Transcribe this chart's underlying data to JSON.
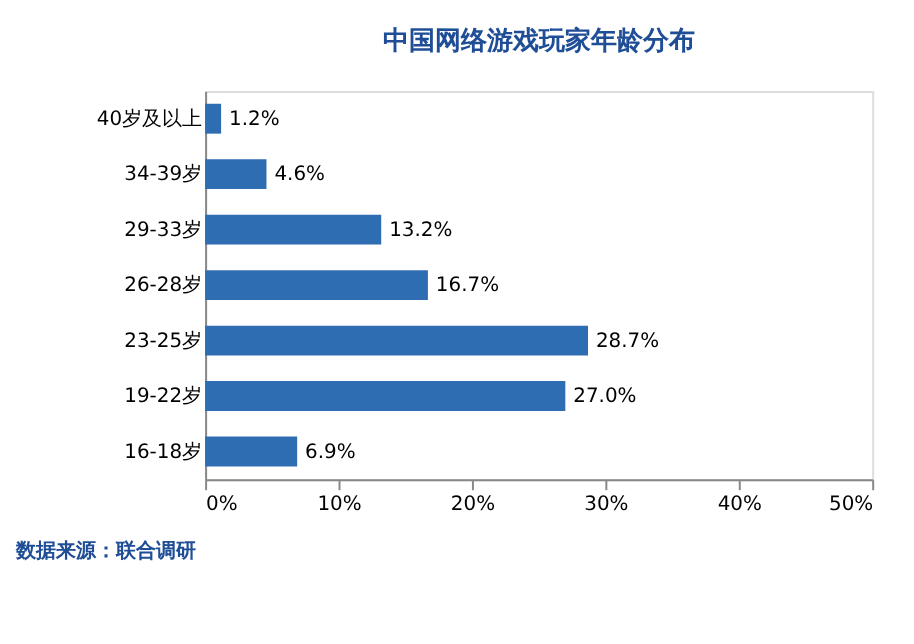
{
  "chart_data": {
    "type": "bar",
    "orientation": "horizontal",
    "title": "中国网络游戏玩家年龄分布",
    "categories": [
      "40岁及以上",
      "34-39岁",
      "29-33岁",
      "26-28岁",
      "23-25岁",
      "19-22岁",
      "16-18岁"
    ],
    "values": [
      1.2,
      4.6,
      13.2,
      16.7,
      28.7,
      27.0,
      6.9
    ],
    "value_labels": [
      "1.2%",
      "4.6%",
      "13.2%",
      "16.7%",
      "28.7%",
      "27.0%",
      "6.9%"
    ],
    "color": "#2f6db3",
    "xlim": [
      0,
      50
    ],
    "xticks": [
      {
        "value": 0,
        "label": "0%"
      },
      {
        "value": 10,
        "label": "10%"
      },
      {
        "value": 20,
        "label": "20%"
      },
      {
        "value": 30,
        "label": "30%"
      },
      {
        "value": 40,
        "label": "40%"
      },
      {
        "value": 50,
        "label": "50%"
      }
    ],
    "grid": false,
    "annotations": [
      "数据来源：联合调研"
    ]
  }
}
